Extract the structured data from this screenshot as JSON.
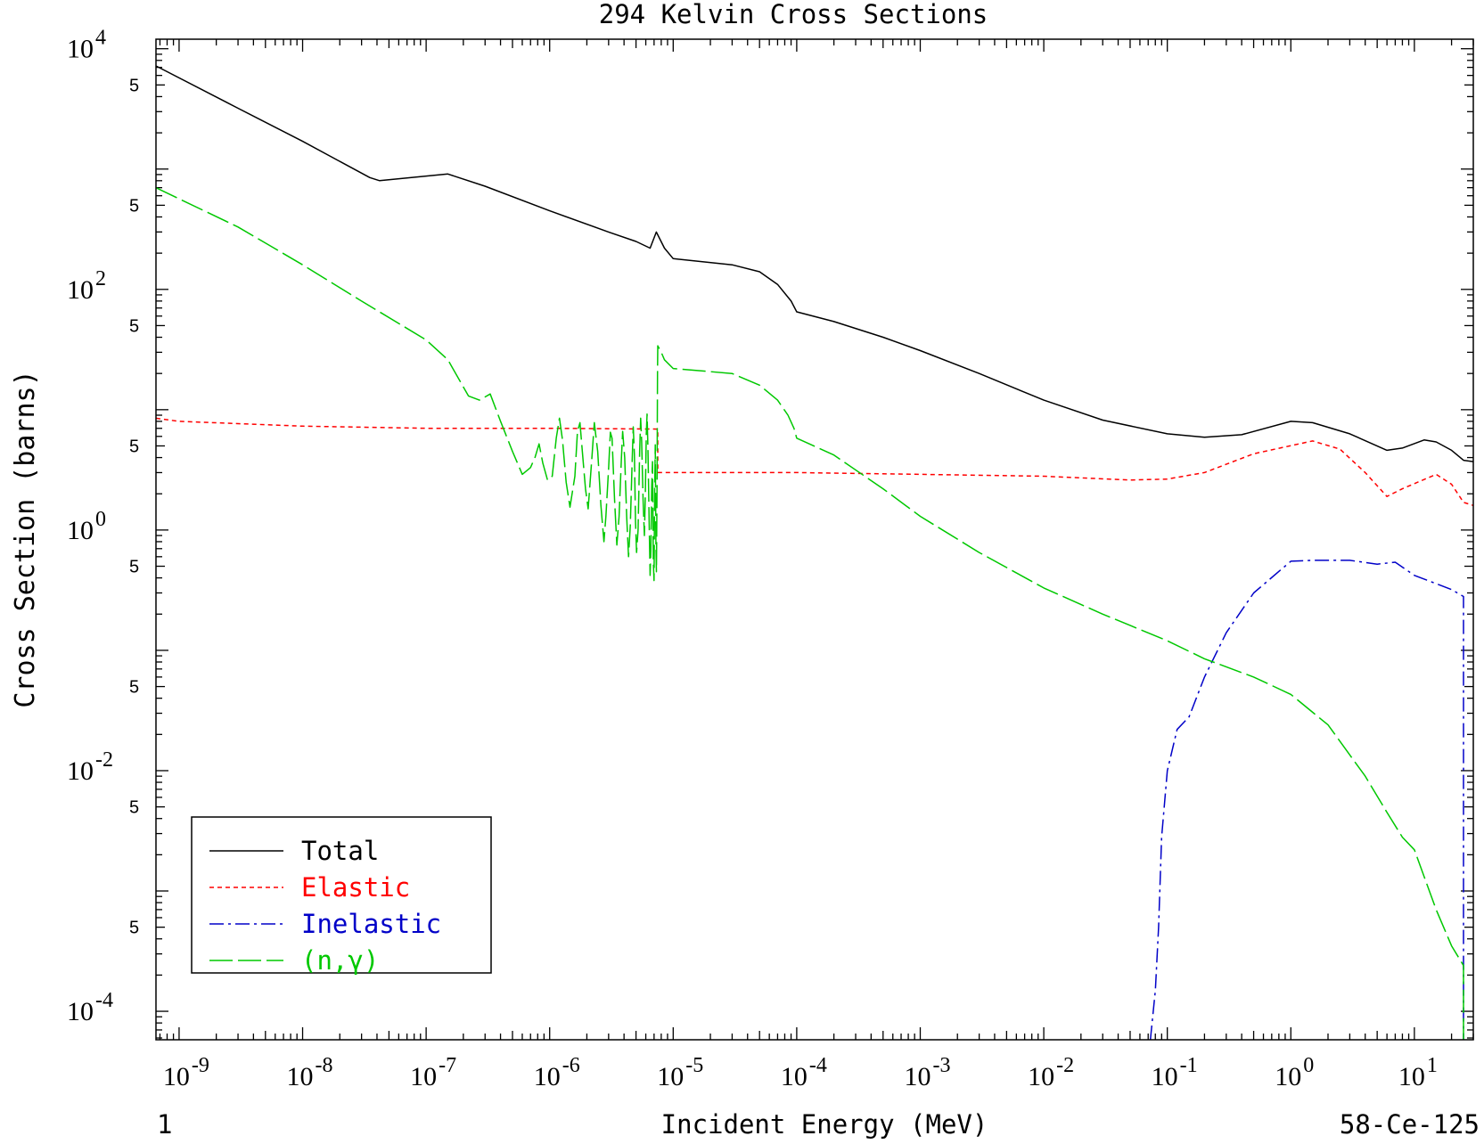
{
  "chart_data": {
    "type": "line",
    "title": "294 Kelvin Cross Sections",
    "xlabel": "Incident Energy (MeV)",
    "ylabel": "Cross Section (barns)",
    "x_scale": "log",
    "y_scale": "log",
    "xlim": [
      6.5e-10,
      30
    ],
    "ylim": [
      5.8e-05,
      12000
    ],
    "x_ticks": [
      {
        "value": 1e-09,
        "base": "10",
        "exp": "-9"
      },
      {
        "value": 1e-08,
        "base": "10",
        "exp": "-8"
      },
      {
        "value": 1e-07,
        "base": "10",
        "exp": "-7"
      },
      {
        "value": 1e-06,
        "base": "10",
        "exp": "-6"
      },
      {
        "value": 1e-05,
        "base": "10",
        "exp": "-5"
      },
      {
        "value": 0.0001,
        "base": "10",
        "exp": "-4"
      },
      {
        "value": 0.001,
        "base": "10",
        "exp": "-3"
      },
      {
        "value": 0.01,
        "base": "10",
        "exp": "-2"
      },
      {
        "value": 0.1,
        "base": "10",
        "exp": "-1"
      },
      {
        "value": 1,
        "base": "10",
        "exp": "0"
      },
      {
        "value": 10,
        "base": "10",
        "exp": "1"
      }
    ],
    "y_ticks": [
      {
        "value": 10000,
        "base": "10",
        "exp": "4"
      },
      {
        "value": 100,
        "base": "10",
        "exp": "2"
      },
      {
        "value": 1,
        "base": "10",
        "exp": "0"
      },
      {
        "value": 0.01,
        "base": "10",
        "exp": "-2"
      },
      {
        "value": 0.0001,
        "base": "10",
        "exp": "-4"
      }
    ],
    "y_minor_label_values": [
      5000,
      500,
      50,
      5,
      0.5,
      0.05,
      0.005,
      0.0005
    ],
    "y_minor_label_text": "5",
    "grid": false,
    "legend_placement": "bottom-left",
    "series": [
      {
        "name": "Total",
        "color": "#000000",
        "dash": "solid",
        "points": [
          [
            6.5e-10,
            7200
          ],
          [
            3e-09,
            3200
          ],
          [
            1e-08,
            1700
          ],
          [
            3.5e-08,
            850
          ],
          [
            4.2e-08,
            800
          ],
          [
            1.5e-07,
            910
          ],
          [
            3e-07,
            720
          ],
          [
            1e-06,
            450
          ],
          [
            3e-06,
            300
          ],
          [
            5e-06,
            250
          ],
          [
            6.5e-06,
            220
          ],
          [
            7.3e-06,
            300
          ],
          [
            8.5e-06,
            220
          ],
          [
            1e-05,
            180
          ],
          [
            3e-05,
            160
          ],
          [
            5e-05,
            140
          ],
          [
            7e-05,
            110
          ],
          [
            9e-05,
            80
          ],
          [
            0.0001,
            65
          ],
          [
            0.0002,
            54
          ],
          [
            0.0005,
            40
          ],
          [
            0.001,
            31
          ],
          [
            0.003,
            20
          ],
          [
            0.01,
            12
          ],
          [
            0.03,
            8.2
          ],
          [
            0.1,
            6.3
          ],
          [
            0.2,
            5.9
          ],
          [
            0.4,
            6.2
          ],
          [
            1,
            8
          ],
          [
            1.5,
            7.8
          ],
          [
            3,
            6.3
          ],
          [
            6,
            4.6
          ],
          [
            8,
            4.8
          ],
          [
            12,
            5.6
          ],
          [
            15,
            5.4
          ],
          [
            20,
            4.6
          ],
          [
            25,
            3.8
          ],
          [
            30,
            3.7
          ]
        ]
      },
      {
        "name": "Elastic",
        "color": "#ff0000",
        "dash": "short",
        "points": [
          [
            6.5e-10,
            8.5
          ],
          [
            1e-09,
            8
          ],
          [
            1e-08,
            7.3
          ],
          [
            1e-07,
            7
          ],
          [
            1e-06,
            7
          ],
          [
            7.5e-06,
            6.9
          ],
          [
            7.5e-06,
            3.0
          ],
          [
            1e-05,
            3.0
          ],
          [
            0.0001,
            3.0
          ],
          [
            0.001,
            2.9
          ],
          [
            0.01,
            2.8
          ],
          [
            0.05,
            2.6
          ],
          [
            0.1,
            2.65
          ],
          [
            0.2,
            3.0
          ],
          [
            0.5,
            4.3
          ],
          [
            1.5,
            5.5
          ],
          [
            2.5,
            4.7
          ],
          [
            4,
            3.0
          ],
          [
            6,
            1.9
          ],
          [
            8,
            2.2
          ],
          [
            15,
            2.9
          ],
          [
            20,
            2.4
          ],
          [
            25,
            1.7
          ],
          [
            30,
            1.6
          ]
        ]
      },
      {
        "name": "Inelastic",
        "color": "#0000c8",
        "dash": "dashdot",
        "points": [
          [
            0.073,
            5.8e-05
          ],
          [
            0.08,
            0.00015
          ],
          [
            0.085,
            0.0005
          ],
          [
            0.09,
            0.0028
          ],
          [
            0.1,
            0.01
          ],
          [
            0.12,
            0.022
          ],
          [
            0.15,
            0.028
          ],
          [
            0.2,
            0.06
          ],
          [
            0.3,
            0.14
          ],
          [
            0.5,
            0.3
          ],
          [
            1,
            0.55
          ],
          [
            1.5,
            0.56
          ],
          [
            3,
            0.56
          ],
          [
            5,
            0.52
          ],
          [
            7,
            0.54
          ],
          [
            10,
            0.42
          ],
          [
            20,
            0.32
          ],
          [
            25,
            0.28
          ],
          [
            25,
            5.8e-05
          ]
        ]
      },
      {
        "name": "(n,γ)",
        "color": "#00c800",
        "dash": "long",
        "points": [
          [
            6.5e-10,
            700
          ],
          [
            3e-09,
            330
          ],
          [
            1e-08,
            160
          ],
          [
            3e-08,
            80
          ],
          [
            1e-07,
            38
          ],
          [
            1.5e-07,
            26
          ],
          [
            2.2e-07,
            13
          ],
          [
            2.7e-07,
            12
          ],
          [
            3.3e-07,
            13.5
          ],
          [
            4e-07,
            8
          ],
          [
            5e-07,
            4.5
          ],
          [
            6e-07,
            2.9
          ],
          [
            7e-07,
            3.3
          ],
          [
            7.6e-07,
            4
          ],
          [
            8.2e-07,
            5.2
          ],
          [
            8.8e-07,
            3.6
          ],
          [
            9.6e-07,
            2.6
          ],
          [
            1.05e-06,
            2.8
          ],
          [
            1.13e-06,
            5.8
          ],
          [
            1.2e-06,
            8.5
          ],
          [
            1.27e-06,
            5.6
          ],
          [
            1.36e-06,
            2.5
          ],
          [
            1.46e-06,
            1.55
          ],
          [
            1.6e-06,
            2.8
          ],
          [
            1.68e-06,
            6.6
          ],
          [
            1.76e-06,
            7.8
          ],
          [
            1.85e-06,
            4.2
          ],
          [
            1.95e-06,
            2.2
          ],
          [
            2.05e-06,
            1.5
          ],
          [
            2.2e-06,
            4.1
          ],
          [
            2.3e-06,
            7.8
          ],
          [
            2.45e-06,
            4.5
          ],
          [
            2.6e-06,
            1.6
          ],
          [
            2.75e-06,
            0.8
          ],
          [
            2.85e-06,
            1.3
          ],
          [
            3e-06,
            3.2
          ],
          [
            3.1e-06,
            6.5
          ],
          [
            3.2e-06,
            5.8
          ],
          [
            3.35e-06,
            1.8
          ],
          [
            3.5e-06,
            0.75
          ],
          [
            3.65e-06,
            1.3
          ],
          [
            3.8e-06,
            3.8
          ],
          [
            3.9e-06,
            6.6
          ],
          [
            4.05e-06,
            4
          ],
          [
            4.2e-06,
            1.3
          ],
          [
            4.35e-06,
            0.6
          ],
          [
            4.5e-06,
            1.1
          ],
          [
            4.65e-06,
            3.6
          ],
          [
            4.75e-06,
            7.2
          ],
          [
            4.85e-06,
            4.2
          ],
          [
            4.95e-06,
            1.2
          ],
          [
            5.05e-06,
            0.65
          ],
          [
            5.2e-06,
            1
          ],
          [
            5.35e-06,
            4.6
          ],
          [
            5.45e-06,
            8.5
          ],
          [
            5.55e-06,
            5.5
          ],
          [
            5.7e-06,
            1.8
          ],
          [
            5.85e-06,
            0.9
          ],
          [
            5.95e-06,
            2.1
          ],
          [
            6.05e-06,
            6.2
          ],
          [
            6.15e-06,
            9.2
          ],
          [
            6.25e-06,
            4.7
          ],
          [
            6.4e-06,
            1.1
          ],
          [
            6.5e-06,
            0.42
          ],
          [
            6.6e-06,
            0.7
          ],
          [
            6.7e-06,
            2.3
          ],
          [
            6.8e-06,
            3.7
          ],
          [
            6.9e-06,
            0.55
          ],
          [
            7e-06,
            0.38
          ],
          [
            7.08e-06,
            2.1
          ],
          [
            7.16e-06,
            5.1
          ],
          [
            7.24e-06,
            0.8
          ],
          [
            7.32e-06,
            0.45
          ],
          [
            7.4e-06,
            2.4
          ],
          [
            7.46e-06,
            20
          ],
          [
            7.5e-06,
            34
          ],
          [
            8e-06,
            30
          ],
          [
            8.5e-06,
            26
          ],
          [
            1e-05,
            22
          ],
          [
            3e-05,
            20
          ],
          [
            5e-05,
            16
          ],
          [
            7e-05,
            12
          ],
          [
            8.5e-05,
            9
          ],
          [
            9.5e-05,
            7
          ],
          [
            0.0001,
            5.8
          ],
          [
            0.0002,
            4.2
          ],
          [
            0.0005,
            2.2
          ],
          [
            0.001,
            1.3
          ],
          [
            0.003,
            0.65
          ],
          [
            0.01,
            0.33
          ],
          [
            0.03,
            0.2
          ],
          [
            0.1,
            0.12
          ],
          [
            0.2,
            0.085
          ],
          [
            0.5,
            0.06
          ],
          [
            1,
            0.043
          ],
          [
            2,
            0.024
          ],
          [
            4,
            0.009
          ],
          [
            6,
            0.0045
          ],
          [
            8,
            0.0028
          ],
          [
            10,
            0.0022
          ],
          [
            15,
            0.0007
          ],
          [
            20,
            0.00035
          ],
          [
            25,
            0.00024
          ],
          [
            25,
            5.8e-05
          ]
        ]
      }
    ]
  },
  "footer": {
    "left_number": "1",
    "nuclide": "58-Ce-125"
  }
}
